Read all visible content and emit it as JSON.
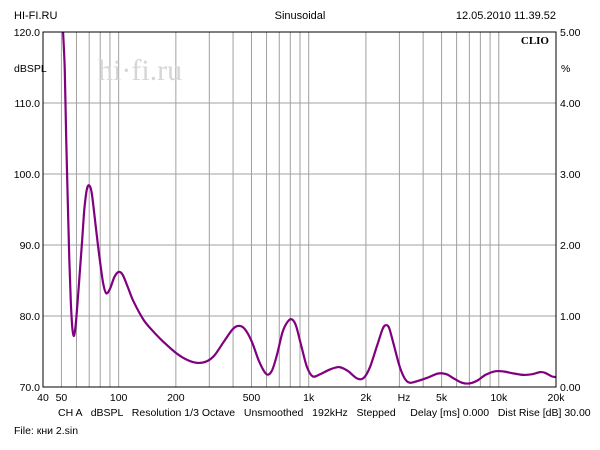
{
  "header": {
    "left": "HI-FI.RU",
    "center": "Sinusoidal",
    "right": "12.05.2010 11.39.52"
  },
  "watermark": {
    "text": "hi·fi.ru"
  },
  "brand": "CLIO",
  "axis": {
    "left_unit": "dBSPL",
    "right_unit": "%",
    "x_unit": "Hz"
  },
  "footer": {
    "line1": {
      "channel": "CH A",
      "unit": "dBSPL",
      "resolution": "Resolution 1/3 Octave",
      "smoothing": "Unsmoothed",
      "rate": "192kHz",
      "mode": "Stepped",
      "delay": "Delay [ms] 0.000",
      "dist": "Dist Rise [dB] 30.00"
    },
    "line2": "File: кни 2.sin"
  },
  "colors": {
    "curve": "#800080",
    "grid": "#a0a0a0",
    "frame": "#000000"
  },
  "chart_data": {
    "type": "line",
    "xscale": "log",
    "xlim": [
      40,
      20000
    ],
    "ylim": [
      70,
      120
    ],
    "y2lim": [
      0,
      5
    ],
    "ylabel": "dBSPL",
    "y2label": "%",
    "xlabel": "Hz",
    "grid": true,
    "xticks": [
      {
        "v": 40,
        "label": "40"
      },
      {
        "v": 50,
        "label": "50"
      },
      {
        "v": 100,
        "label": "100"
      },
      {
        "v": 200,
        "label": "200"
      },
      {
        "v": 500,
        "label": "500"
      },
      {
        "v": 1000,
        "label": "1k"
      },
      {
        "v": 2000,
        "label": "2k"
      },
      {
        "v": 5000,
        "label": "5k"
      },
      {
        "v": 10000,
        "label": "10k"
      },
      {
        "v": 20000,
        "label": "20k"
      }
    ],
    "yticks": [
      {
        "v": 70,
        "label": "70.0"
      },
      {
        "v": 80,
        "label": "80.0"
      },
      {
        "v": 90,
        "label": "90.0"
      },
      {
        "v": 100,
        "label": "100.0"
      },
      {
        "v": 110,
        "label": "110.0"
      },
      {
        "v": 120,
        "label": "120.0"
      }
    ],
    "y2ticks": [
      {
        "v": 0,
        "label": "0.00"
      },
      {
        "v": 1,
        "label": "1.00"
      },
      {
        "v": 2,
        "label": "2.00"
      },
      {
        "v": 3,
        "label": "3.00"
      },
      {
        "v": 4,
        "label": "4.00"
      },
      {
        "v": 5,
        "label": "5.00"
      }
    ],
    "series": [
      {
        "color": "#800080",
        "points": [
          [
            51,
            120
          ],
          [
            52,
            115
          ],
          [
            53,
            105
          ],
          [
            54,
            96
          ],
          [
            55,
            88
          ],
          [
            56,
            82
          ],
          [
            57,
            78.5
          ],
          [
            58,
            77.2
          ],
          [
            59,
            78
          ],
          [
            60,
            80
          ],
          [
            62,
            85
          ],
          [
            64,
            90
          ],
          [
            66,
            95
          ],
          [
            68,
            97.8
          ],
          [
            70,
            98.4
          ],
          [
            72,
            97.5
          ],
          [
            74,
            95
          ],
          [
            77,
            91
          ],
          [
            80,
            87.5
          ],
          [
            83,
            84.5
          ],
          [
            86,
            83.2
          ],
          [
            90,
            83.8
          ],
          [
            95,
            85.5
          ],
          [
            100,
            86.2
          ],
          [
            105,
            85.8
          ],
          [
            112,
            84
          ],
          [
            120,
            82
          ],
          [
            135,
            79.5
          ],
          [
            150,
            78
          ],
          [
            170,
            76.5
          ],
          [
            200,
            74.8
          ],
          [
            230,
            73.8
          ],
          [
            260,
            73.4
          ],
          [
            290,
            73.6
          ],
          [
            320,
            74.5
          ],
          [
            360,
            76.5
          ],
          [
            400,
            78.2
          ],
          [
            430,
            78.6
          ],
          [
            460,
            78.2
          ],
          [
            500,
            76.5
          ],
          [
            550,
            73.5
          ],
          [
            600,
            71.8
          ],
          [
            640,
            72.3
          ],
          [
            680,
            74.5
          ],
          [
            730,
            77.8
          ],
          [
            780,
            79.3
          ],
          [
            820,
            79.5
          ],
          [
            860,
            78.5
          ],
          [
            920,
            75.5
          ],
          [
            980,
            72.8
          ],
          [
            1050,
            71.5
          ],
          [
            1150,
            71.8
          ],
          [
            1300,
            72.5
          ],
          [
            1450,
            72.8
          ],
          [
            1600,
            72.3
          ],
          [
            1800,
            71.2
          ],
          [
            1950,
            71.3
          ],
          [
            2100,
            72.8
          ],
          [
            2300,
            76
          ],
          [
            2450,
            78.2
          ],
          [
            2550,
            78.7
          ],
          [
            2650,
            78.3
          ],
          [
            2800,
            76
          ],
          [
            3000,
            73
          ],
          [
            3200,
            71.2
          ],
          [
            3400,
            70.6
          ],
          [
            3700,
            70.8
          ],
          [
            4200,
            71.3
          ],
          [
            4800,
            71.9
          ],
          [
            5300,
            71.8
          ],
          [
            5800,
            71.2
          ],
          [
            6400,
            70.6
          ],
          [
            7000,
            70.5
          ],
          [
            7700,
            70.9
          ],
          [
            8500,
            71.7
          ],
          [
            9500,
            72.2
          ],
          [
            10500,
            72.2
          ],
          [
            12000,
            71.9
          ],
          [
            13500,
            71.7
          ],
          [
            15000,
            71.8
          ],
          [
            16500,
            72.1
          ],
          [
            17500,
            72
          ],
          [
            19000,
            71.5
          ],
          [
            20000,
            71.4
          ]
        ]
      }
    ]
  }
}
